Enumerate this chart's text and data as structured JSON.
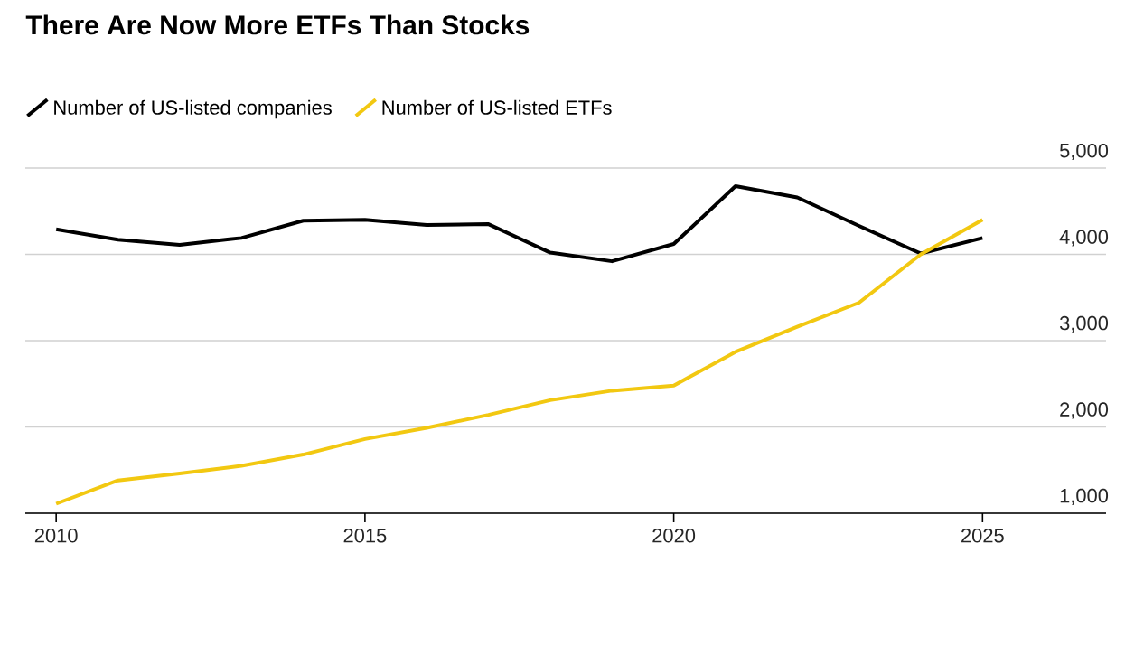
{
  "chart_data": {
    "type": "line",
    "title": "There Are Now More ETFs Than Stocks",
    "x": [
      2010,
      2011,
      2012,
      2013,
      2014,
      2015,
      2016,
      2017,
      2018,
      2019,
      2020,
      2021,
      2022,
      2023,
      2024,
      2025
    ],
    "series": [
      {
        "name": "Number of US-listed companies",
        "color": "#000000",
        "values": [
          4290,
          4170,
          4110,
          4190,
          4390,
          4400,
          4340,
          4350,
          4020,
          3920,
          4120,
          4790,
          4660,
          4330,
          4010,
          4190
        ]
      },
      {
        "name": "Number of US-listed ETFs",
        "color": "#f2c811",
        "values": [
          1110,
          1380,
          1460,
          1550,
          1680,
          1860,
          1990,
          2140,
          2310,
          2420,
          2480,
          2870,
          3160,
          3440,
          4000,
          4400
        ]
      }
    ],
    "xlim": [
      2009.5,
      2027
    ],
    "xticks": [
      2010,
      2015,
      2020,
      2025
    ],
    "ylim": [
      1000,
      5000
    ],
    "yticks": [
      {
        "value": 1000,
        "label": "1,000"
      },
      {
        "value": 2000,
        "label": "2,000"
      },
      {
        "value": 3000,
        "label": "3,000"
      },
      {
        "value": 4000,
        "label": "4,000"
      },
      {
        "value": 5000,
        "label": "5,000"
      }
    ],
    "grid": "y",
    "legend": "top left",
    "marker": "none",
    "line_style": "solid"
  }
}
